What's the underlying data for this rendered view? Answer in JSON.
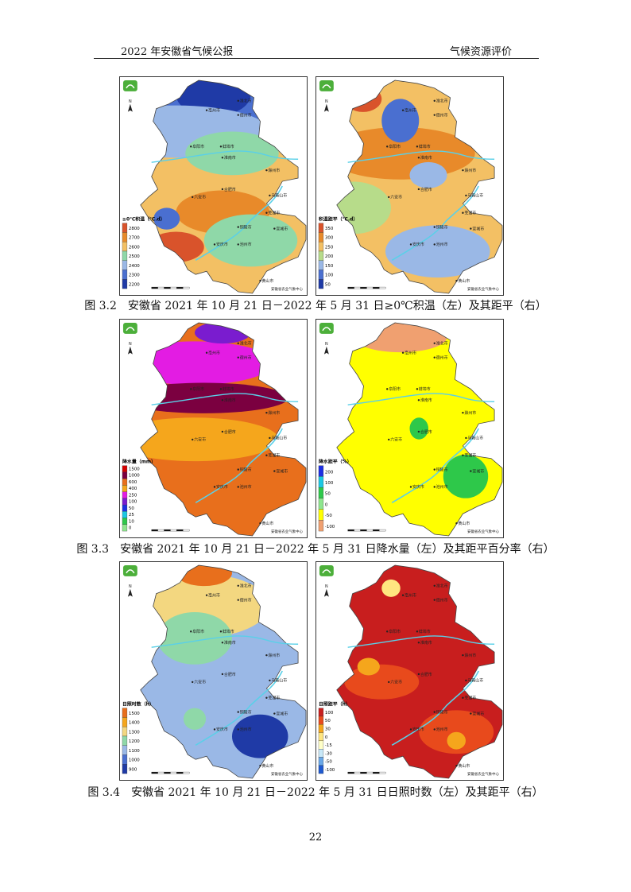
{
  "header": {
    "left": "2022 年安徽省气候公报",
    "right": "气候资源评价"
  },
  "captions": {
    "fig32": "图 3.2　安徽省 2021 年 10 月 21 日－2022 年 5 月 31 日≥0℃积温（左）及其距平（右）",
    "fig33": "图 3.3　安徽省 2021 年 10 月 21 日－2022 年 5 月 31 日降水量（左）及其距平百分率（右）",
    "fig34": "图 3.4　安徽省 2021 年 10 月 21 日－2022 年 5 月 31 日日照时数（左）及其距平（右）"
  },
  "credit": "安徽省农业气象中心",
  "north": "N",
  "cities": [
    "亳州市",
    "淮北市",
    "宿州市",
    "阜阳市",
    "蚌埠市",
    "淮南市",
    "滁州市",
    "六安市",
    "合肥市",
    "马鞍山市",
    "芜湖市",
    "铜陵市",
    "宣城市",
    "池州市",
    "安庆市",
    "黄山市"
  ],
  "maps": [
    {
      "legend_title": "≥0℃积温（℃.d）",
      "legend_labels": [
        "2800",
        "2700",
        "2600",
        "2500",
        "2400",
        "2300",
        "2200"
      ],
      "legend_colors": [
        "#d9532b",
        "#e88a2a",
        "#f3c064",
        "#8fd8a8",
        "#9ab8e6",
        "#4a6fd0",
        "#1f3aa6"
      ],
      "base": "#f3c064",
      "blobs": [
        [
          "#4a6fd0",
          0.55,
          0.1,
          0.35,
          0.15
        ],
        [
          "#1f3aa6",
          0.5,
          0.08,
          0.2,
          0.1
        ],
        [
          "#9ab8e6",
          0.3,
          0.25,
          0.5,
          0.12
        ],
        [
          "#8fd8a8",
          0.6,
          0.35,
          0.25,
          0.1
        ],
        [
          "#e88a2a",
          0.55,
          0.62,
          0.25,
          0.1
        ],
        [
          "#d9532b",
          0.3,
          0.78,
          0.15,
          0.07
        ],
        [
          "#8fd8a8",
          0.7,
          0.75,
          0.25,
          0.12
        ],
        [
          "#4a6fd0",
          0.25,
          0.65,
          0.07,
          0.05
        ]
      ]
    },
    {
      "legend_title": "积温距平（℃.d）",
      "legend_labels": [
        "350",
        "300",
        "250",
        "200",
        "150",
        "100",
        "50"
      ],
      "legend_colors": [
        "#d9532b",
        "#e88a2a",
        "#f3c064",
        "#b7dc8a",
        "#9ab8e6",
        "#4a6fd0",
        "#1f3aa6"
      ],
      "base": "#f3c064",
      "blobs": [
        [
          "#e88a2a",
          0.45,
          0.35,
          0.4,
          0.12
        ],
        [
          "#4a6fd0",
          0.45,
          0.2,
          0.1,
          0.1
        ],
        [
          "#b7dc8a",
          0.2,
          0.6,
          0.2,
          0.12
        ],
        [
          "#9ab8e6",
          0.65,
          0.8,
          0.28,
          0.12
        ],
        [
          "#d9532b",
          0.25,
          0.1,
          0.1,
          0.06
        ],
        [
          "#9ab8e6",
          0.6,
          0.45,
          0.1,
          0.06
        ]
      ]
    },
    {
      "legend_title": "降水量（mm）",
      "legend_labels": [
        "1500",
        "1000",
        "600",
        "400",
        "250",
        "100",
        "50",
        "25",
        "10",
        "0"
      ],
      "legend_colors": [
        "#d40000",
        "#7b0040",
        "#e86f1c",
        "#f5a61c",
        "#e31ce3",
        "#7a1ccf",
        "#1c2ee3",
        "#1cc8e3",
        "#2ec84a",
        "#8ee68e"
      ],
      "base": "#e86f1c",
      "blobs": [
        [
          "#e31ce3",
          0.4,
          0.2,
          0.42,
          0.1
        ],
        [
          "#7a1ccf",
          0.55,
          0.06,
          0.15,
          0.05
        ],
        [
          "#7b0040",
          0.45,
          0.36,
          0.45,
          0.07
        ],
        [
          "#f5a61c",
          0.4,
          0.55,
          0.45,
          0.1
        ]
      ]
    },
    {
      "legend_title": "降水距平（%）",
      "legend_labels": [
        "200",
        "100",
        "50",
        "0",
        "-50",
        "-100"
      ],
      "legend_colors": [
        "#1c2ee3",
        "#1cc8e3",
        "#2ec84a",
        "#8ee68e",
        "#ffff00",
        "#f0a070"
      ],
      "base": "#ffff00",
      "blobs": [
        [
          "#f0a070",
          0.45,
          0.08,
          0.25,
          0.07
        ],
        [
          "#2ec84a",
          0.8,
          0.72,
          0.12,
          0.1
        ],
        [
          "#2ec84a",
          0.55,
          0.5,
          0.05,
          0.05
        ]
      ]
    },
    {
      "legend_title": "日照时数（h）",
      "legend_labels": [
        "1500",
        "1400",
        "1300",
        "1200",
        "1100",
        "1000",
        "900"
      ],
      "legend_colors": [
        "#e86f1c",
        "#f5a61c",
        "#f3d780",
        "#8fd8a8",
        "#9ab8e6",
        "#4a6fd0",
        "#1f3aa6"
      ],
      "base": "#9ab8e6",
      "blobs": [
        [
          "#f3d780",
          0.4,
          0.2,
          0.4,
          0.15
        ],
        [
          "#e86f1c",
          0.45,
          0.05,
          0.15,
          0.06
        ],
        [
          "#8fd8a8",
          0.4,
          0.35,
          0.2,
          0.12
        ],
        [
          "#1f3aa6",
          0.75,
          0.8,
          0.15,
          0.1
        ],
        [
          "#8fd8a8",
          0.4,
          0.72,
          0.06,
          0.05
        ]
      ]
    },
    {
      "legend_title": "日照距平（h）",
      "legend_labels": [
        "100",
        "50",
        "30",
        "0",
        "-15",
        "-30",
        "-50",
        "-100"
      ],
      "legend_colors": [
        "#c81e1e",
        "#e84a1c",
        "#f5a61c",
        "#ffe680",
        "#ffffc8",
        "#c8e8f8",
        "#6aa8e8",
        "#1f5ad0"
      ],
      "base": "#c81e1e",
      "blobs": [
        [
          "#e84a1c",
          0.35,
          0.55,
          0.2,
          0.08
        ],
        [
          "#e84a1c",
          0.75,
          0.78,
          0.2,
          0.1
        ],
        [
          "#f5a61c",
          0.28,
          0.48,
          0.06,
          0.04
        ],
        [
          "#ffe680",
          0.4,
          0.12,
          0.05,
          0.04
        ],
        [
          "#f5a61c",
          0.75,
          0.82,
          0.05,
          0.04
        ]
      ]
    }
  ]
}
